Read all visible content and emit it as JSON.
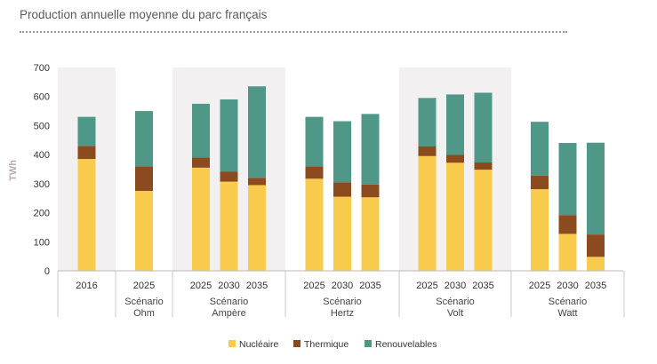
{
  "title": "Production annuelle moyenne du parc français",
  "chart_data": {
    "type": "bar",
    "stacked": true,
    "ylabel": "TWh",
    "ylim": [
      0,
      700
    ],
    "yticks": [
      0,
      100,
      200,
      300,
      400,
      500,
      600,
      700
    ],
    "colors": {
      "Nucléaire": "#f9cb4d",
      "Thermique": "#8c4b1e",
      "Renouvelables": "#4f9786"
    },
    "legend": [
      "Nucléaire",
      "Thermique",
      "Renouvelables"
    ],
    "groups": [
      {
        "label": "",
        "shaded": true,
        "bars": [
          {
            "year": "2016",
            "nuc": 385,
            "thermal": 45,
            "ren": 100
          }
        ]
      },
      {
        "label": "Scénario Ohm",
        "shaded": false,
        "bars": [
          {
            "year": "2025",
            "nuc": 275,
            "thermal": 85,
            "ren": 190
          }
        ]
      },
      {
        "label": "Scénario Ampère",
        "shaded": true,
        "bars": [
          {
            "year": "2025",
            "nuc": 355,
            "thermal": 35,
            "ren": 185
          },
          {
            "year": "2030",
            "nuc": 307,
            "thermal": 35,
            "ren": 248
          },
          {
            "year": "2035",
            "nuc": 295,
            "thermal": 25,
            "ren": 315
          }
        ]
      },
      {
        "label": "Scénario Hertz",
        "shaded": false,
        "bars": [
          {
            "year": "2025",
            "nuc": 317,
            "thermal": 43,
            "ren": 170
          },
          {
            "year": "2030",
            "nuc": 255,
            "thermal": 50,
            "ren": 210
          },
          {
            "year": "2035",
            "nuc": 253,
            "thermal": 44,
            "ren": 243
          }
        ]
      },
      {
        "label": "Scénario Volt",
        "shaded": true,
        "bars": [
          {
            "year": "2025",
            "nuc": 395,
            "thermal": 33,
            "ren": 167
          },
          {
            "year": "2030",
            "nuc": 372,
            "thermal": 27,
            "ren": 208
          },
          {
            "year": "2035",
            "nuc": 348,
            "thermal": 25,
            "ren": 240
          }
        ]
      },
      {
        "label": "Scénario Watt",
        "shaded": false,
        "bars": [
          {
            "year": "2025",
            "nuc": 281,
            "thermal": 47,
            "ren": 185
          },
          {
            "year": "2030",
            "nuc": 127,
            "thermal": 65,
            "ren": 248
          },
          {
            "year": "2035",
            "nuc": 48,
            "thermal": 77,
            "ren": 316
          }
        ]
      }
    ]
  }
}
